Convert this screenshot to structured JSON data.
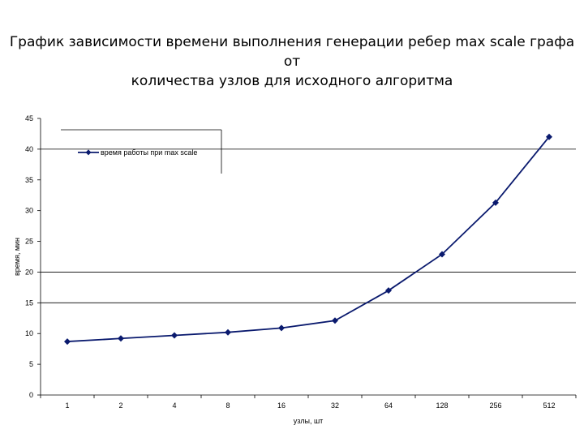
{
  "title": {
    "line1": "График зависимости времени выполнения генерации ребер max scale графа от",
    "line2": "количества узлов для исходного алгоритма"
  },
  "chart_data": {
    "type": "line",
    "x": [
      "1",
      "2",
      "4",
      "8",
      "16",
      "32",
      "64",
      "128",
      "256",
      "512"
    ],
    "series": [
      {
        "name": "время работы при max scale",
        "values": [
          8.7,
          9.2,
          9.7,
          10.2,
          10.9,
          12.1,
          17.0,
          22.9,
          31.3,
          42.0
        ],
        "color": "#0a1a6e"
      }
    ],
    "xlabel": "узлы, шт",
    "ylabel": "время, мин",
    "ylim": [
      0,
      45
    ],
    "yticks": [
      "0",
      "5",
      "10",
      "15",
      "20",
      "25",
      "30",
      "35",
      "40",
      "45"
    ],
    "gridlines": [
      20,
      15
    ],
    "legend_position": "top-left",
    "marker": "diamond"
  }
}
